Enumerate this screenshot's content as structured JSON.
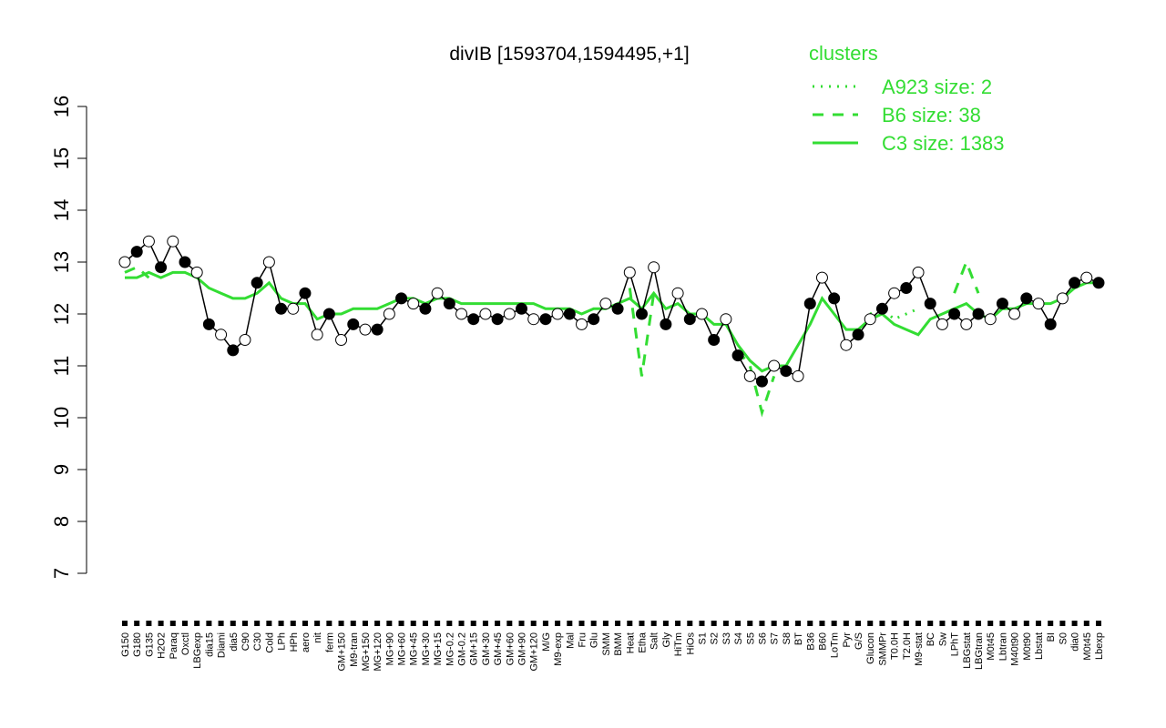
{
  "chart_data": {
    "type": "line",
    "title": "divIB [1593704,1594495,+1]",
    "legend_title": "clusters",
    "categories": [
      "G150",
      "G180",
      "G135",
      "H2O2",
      "Paraq",
      "Oxctl",
      "LBGexp",
      "dia15",
      "Diami",
      "dia5",
      "C90",
      "C30",
      "Cold",
      "LPh",
      "HPh",
      "aero",
      "nit",
      "ferm",
      "GM+150",
      "M9-tran",
      "MG+150",
      "MG+120",
      "MG+90",
      "MG+60",
      "MG+45",
      "MG+30",
      "MG+15",
      "MG-0.2",
      "GM-0.2",
      "GM+15",
      "GM+30",
      "GM+45",
      "GM+60",
      "GM+90",
      "GM+120",
      "M/G",
      "M9-exp",
      "Mal",
      "Fru",
      "Glu",
      "SMM",
      "BMM",
      "Heat",
      "Etha",
      "Salt",
      "Gly",
      "HiTm",
      "HiOs",
      "S1",
      "S2",
      "S3",
      "S4",
      "S5",
      "S6",
      "S7",
      "S8",
      "BT",
      "B36",
      "B60",
      "LoTm",
      "Pyr",
      "G/S",
      "Glucon",
      "SMMPr",
      "T0.0H",
      "T2.0H",
      "M9-stat",
      "BC",
      "Sw",
      "LPhT",
      "LBGstat",
      "LBGtran",
      "M0t45",
      "Lbtran",
      "M40t90",
      "M0t90",
      "Lbstat",
      "BI",
      "S0",
      "dia0",
      "M0t45",
      "Lbexp"
    ],
    "values": [
      13.0,
      13.2,
      13.4,
      12.9,
      13.4,
      13.0,
      12.8,
      11.8,
      11.6,
      11.3,
      11.5,
      12.6,
      13.0,
      12.1,
      12.1,
      12.4,
      11.6,
      12.0,
      11.5,
      11.8,
      11.7,
      11.7,
      12.0,
      12.3,
      12.2,
      12.1,
      12.4,
      12.2,
      12.0,
      11.9,
      12.0,
      11.9,
      12.0,
      12.1,
      11.9,
      11.9,
      12.0,
      12.0,
      11.8,
      11.9,
      12.2,
      12.1,
      12.8,
      12.0,
      12.9,
      11.8,
      12.4,
      11.9,
      12.0,
      11.5,
      11.9,
      11.2,
      10.8,
      10.7,
      11.0,
      10.9,
      10.8,
      12.2,
      12.7,
      12.3,
      11.4,
      11.6,
      11.9,
      12.1,
      12.4,
      12.5,
      12.8,
      12.2,
      11.8,
      12.0,
      11.8,
      12.0,
      11.9,
      12.2,
      12.0,
      12.3,
      12.2,
      11.8,
      12.3,
      12.6,
      12.7,
      12.6
    ],
    "series": [
      {
        "name": "A923 size: 2",
        "color": "#33dd33",
        "dash": "dotted",
        "values": [
          null,
          null,
          null,
          null,
          null,
          null,
          null,
          null,
          null,
          null,
          null,
          null,
          null,
          null,
          null,
          null,
          null,
          null,
          null,
          null,
          null,
          null,
          null,
          null,
          null,
          null,
          null,
          null,
          null,
          null,
          null,
          null,
          null,
          null,
          null,
          null,
          null,
          null,
          null,
          null,
          null,
          null,
          null,
          null,
          null,
          null,
          null,
          null,
          null,
          null,
          null,
          null,
          null,
          null,
          null,
          null,
          null,
          null,
          null,
          null,
          null,
          null,
          12.0,
          12.1,
          11.9,
          12.0,
          12.1,
          null,
          null,
          null,
          null,
          null,
          null,
          null,
          null,
          null,
          null,
          null,
          null,
          null,
          null,
          null
        ]
      },
      {
        "name": "B6 size: 38",
        "color": "#33dd33",
        "dash": "dashed",
        "values": [
          12.8,
          12.9,
          12.7,
          null,
          null,
          null,
          null,
          null,
          null,
          null,
          null,
          null,
          null,
          null,
          null,
          null,
          null,
          null,
          null,
          null,
          null,
          null,
          null,
          null,
          null,
          null,
          null,
          null,
          null,
          null,
          null,
          null,
          null,
          null,
          null,
          null,
          null,
          null,
          null,
          null,
          null,
          null,
          12.5,
          10.8,
          12.4,
          null,
          null,
          null,
          null,
          null,
          null,
          11.3,
          11.0,
          10.1,
          10.8,
          null,
          null,
          null,
          null,
          null,
          null,
          null,
          null,
          null,
          null,
          null,
          null,
          null,
          null,
          12.4,
          13.0,
          12.4,
          null,
          null,
          null,
          null,
          null,
          null,
          null,
          null,
          null,
          null
        ]
      },
      {
        "name": "C3 size: 1383",
        "color": "#33dd33",
        "dash": "solid",
        "values": [
          12.7,
          12.7,
          12.8,
          12.7,
          12.8,
          12.8,
          12.7,
          12.5,
          12.4,
          12.3,
          12.3,
          12.4,
          12.6,
          12.3,
          12.2,
          12.2,
          11.9,
          12.0,
          12.0,
          12.1,
          12.1,
          12.1,
          12.2,
          12.3,
          12.3,
          12.2,
          12.3,
          12.3,
          12.2,
          12.2,
          12.2,
          12.2,
          12.2,
          12.2,
          12.2,
          12.1,
          12.1,
          12.1,
          12.0,
          12.1,
          12.1,
          12.2,
          12.3,
          12.1,
          12.4,
          12.1,
          12.2,
          12.0,
          12.0,
          11.8,
          11.8,
          11.4,
          11.1,
          10.9,
          11.0,
          11.0,
          11.4,
          11.8,
          12.3,
          12.0,
          11.7,
          11.7,
          11.9,
          12.0,
          11.8,
          11.7,
          11.6,
          11.9,
          12.0,
          12.1,
          12.2,
          12.0,
          11.9,
          12.1,
          12.1,
          12.2,
          12.2,
          12.2,
          12.3,
          12.5,
          12.6,
          12.6
        ]
      }
    ],
    "ylim": [
      7,
      16
    ],
    "yticks": [
      7,
      8,
      9,
      10,
      11,
      12,
      13,
      14,
      15,
      16
    ]
  }
}
